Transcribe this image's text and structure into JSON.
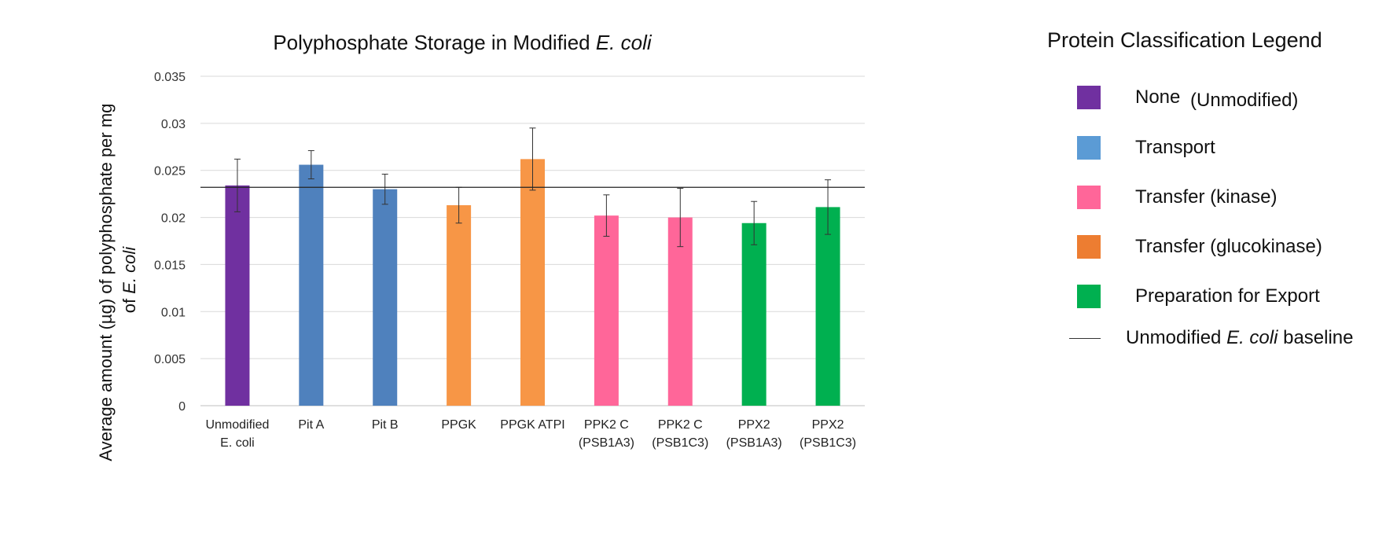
{
  "chart_data": {
    "type": "bar",
    "title_main": "Polyphosphate Storage in Modified ",
    "title_italic": "E. coli",
    "ylabel_line1": "Average amount (µg) of polyphosphate per mg",
    "ylabel_line2_prefix": "of ",
    "ylabel_line2_italic": "E. coli",
    "ylim": [
      0,
      0.035
    ],
    "yticks": [
      0,
      0.005,
      0.01,
      0.015,
      0.02,
      0.025,
      0.03,
      0.035
    ],
    "ytick_labels": [
      "0",
      "0.005",
      "0.01",
      "0.015",
      "0.02",
      "0.025",
      "0.03",
      "0.035"
    ],
    "grid": true,
    "baseline": 0.0232,
    "categories": [
      [
        "Unmodified",
        "E. coli"
      ],
      [
        "Pit A"
      ],
      [
        "Pit B"
      ],
      [
        "PPGK"
      ],
      [
        "PPGK ATPI"
      ],
      [
        "PPK2 C",
        "(PSB1A3)"
      ],
      [
        "PPK2 C",
        "(PSB1C3)"
      ],
      [
        "PPX2",
        "(PSB1A3)"
      ],
      [
        "PPX2",
        "(PSB1C3)"
      ]
    ],
    "values": [
      0.0234,
      0.0256,
      0.023,
      0.0213,
      0.0262,
      0.0202,
      0.02,
      0.0194,
      0.0211
    ],
    "errors": [
      0.0028,
      0.0015,
      0.0016,
      0.0019,
      0.0033,
      0.0022,
      0.0031,
      0.0023,
      0.0029
    ],
    "colors": [
      "#7030a0",
      "#4f81bd",
      "#4f81bd",
      "#f79646",
      "#f79646",
      "#ff6699",
      "#ff6699",
      "#00b050",
      "#00b050"
    ]
  },
  "legend": {
    "title": "Protein Classification Legend",
    "items": [
      {
        "label": "None",
        "label_suffix": "(Unmodified)",
        "color": "#7030a0"
      },
      {
        "label": "Transport",
        "color": "#5b9bd5"
      },
      {
        "label": "Transfer (kinase)",
        "color": "#ff6699"
      },
      {
        "label": "Transfer (glucokinase)",
        "color": "#ed7d31"
      },
      {
        "label": "Preparation for Export",
        "color": "#00b050"
      }
    ],
    "baseline_prefix": "Unmodified ",
    "baseline_italic": "E. coli",
    "baseline_suffix": " baseline"
  }
}
